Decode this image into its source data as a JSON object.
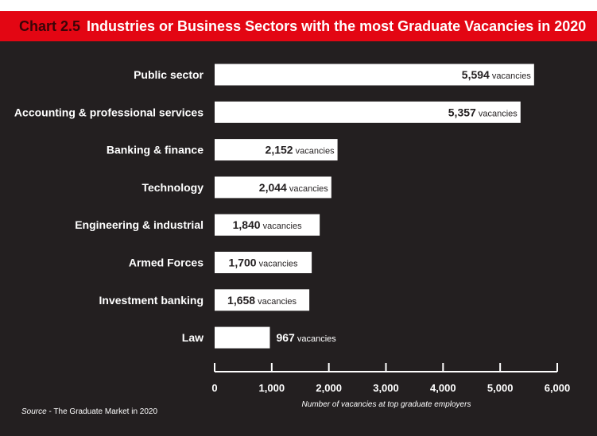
{
  "header": {
    "chart_number": "Chart 2.5",
    "title": "Industries or Business Sectors with the most Graduate Vacancies in 2020"
  },
  "source": {
    "label": "Source",
    "separator": " - ",
    "text": "The Graduate Market in 2020"
  },
  "colors": {
    "header_bg": "#e30613",
    "panel_bg": "#231f20",
    "bar": "#ffffff",
    "text": "#ffffff"
  },
  "chart_data": {
    "type": "bar",
    "orientation": "horizontal",
    "title": "Industries or Business Sectors with the most Graduate Vacancies in 2020",
    "categories": [
      "Public sector",
      "Accounting & professional services",
      "Banking & finance",
      "Technology",
      "Engineering & industrial",
      "Armed Forces",
      "Investment banking",
      "Law"
    ],
    "values": [
      5594,
      5357,
      2152,
      2044,
      1840,
      1700,
      1658,
      967
    ],
    "value_labels": [
      "5,594",
      "5,357",
      "2,152",
      "2,044",
      "1,840",
      "1,700",
      "1,658",
      "967"
    ],
    "value_unit": "vacancies",
    "xlabel": "Number of vacancies at top graduate employers",
    "ylabel": "",
    "xlim": [
      0,
      6000
    ],
    "xticks": [
      0,
      1000,
      2000,
      3000,
      4000,
      5000,
      6000
    ],
    "xtick_labels": [
      "0",
      "1,000",
      "2,000",
      "3,000",
      "4,000",
      "5,000",
      "6,000"
    ],
    "grid": false,
    "legend": "none"
  }
}
